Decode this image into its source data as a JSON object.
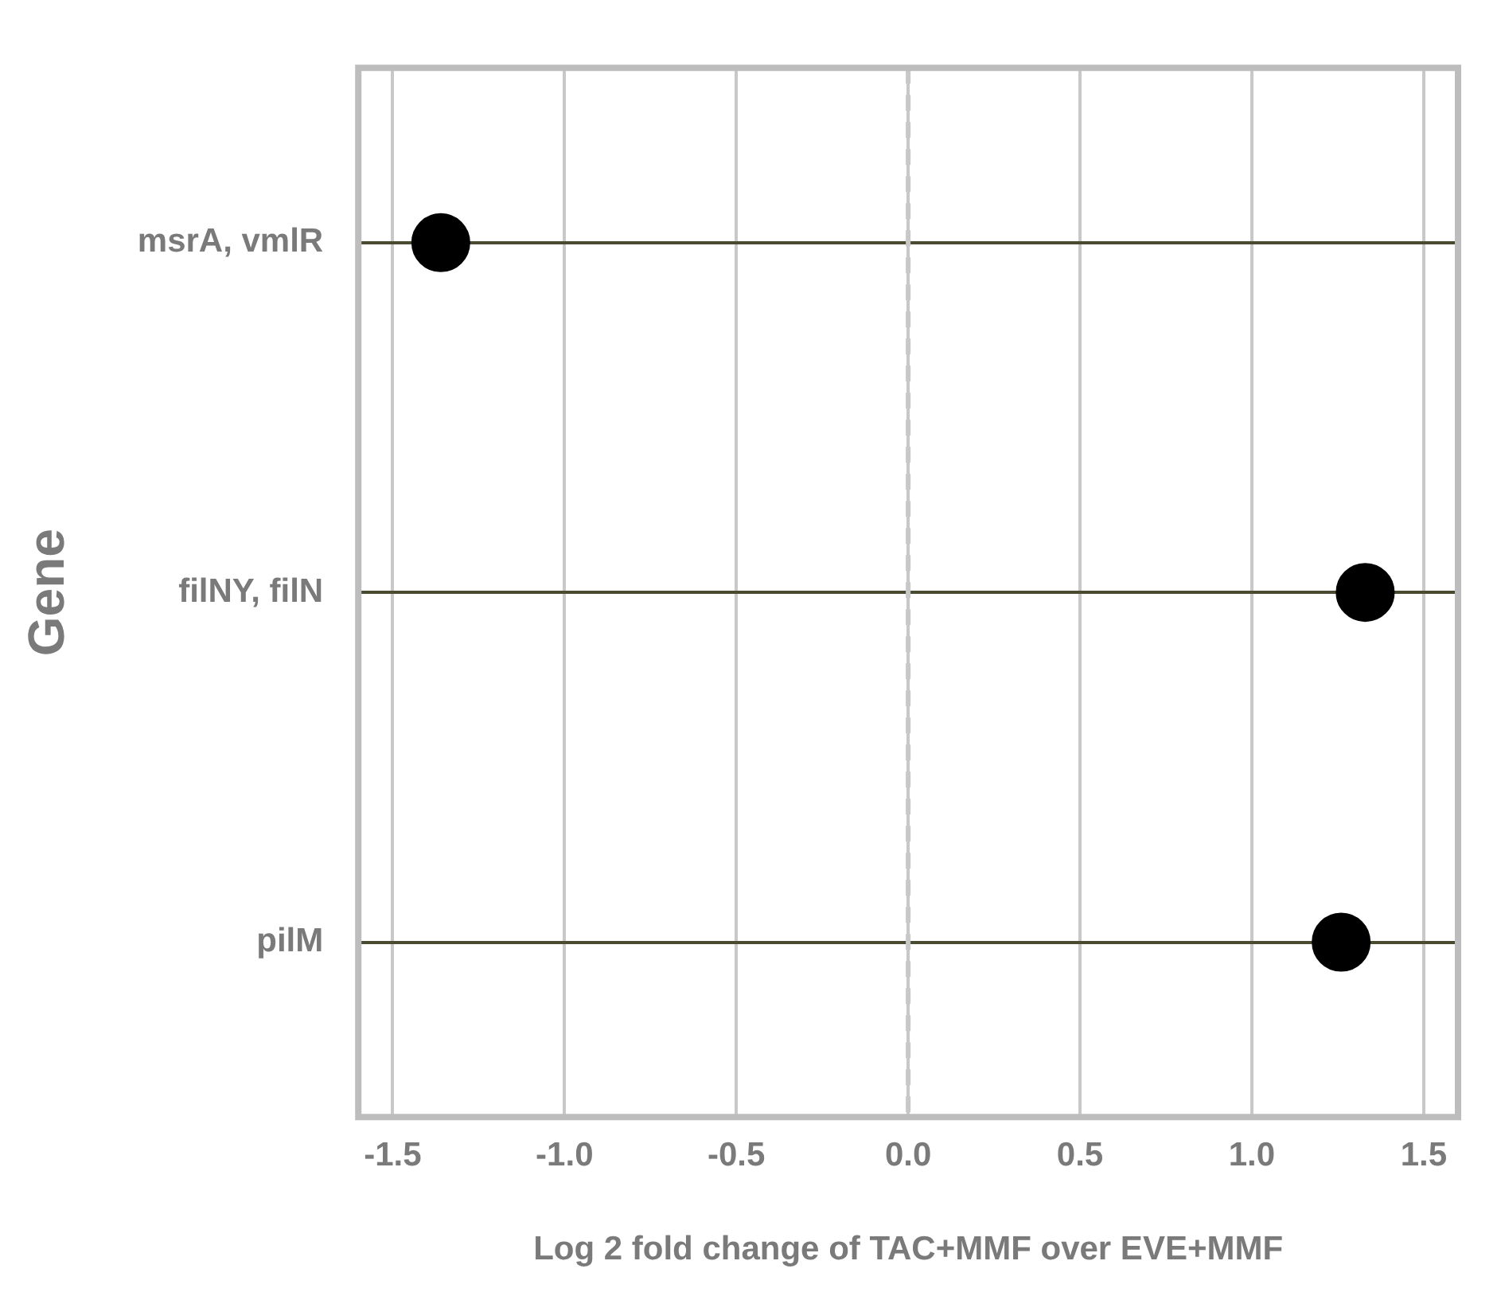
{
  "chart_data": {
    "type": "scatter",
    "orientation": "horizontal",
    "categories": [
      "msrA, vmlR",
      "filNY, filN",
      "pilM"
    ],
    "values": [
      -1.36,
      1.33,
      1.26
    ],
    "color": "#000000",
    "marker": "circle",
    "xlabel": "Log 2 fold change of TAC+MMF over EVE+MMF",
    "ylabel": "Gene",
    "xlim": [
      -1.6,
      1.6
    ],
    "xticks": [
      -1.5,
      {
        "value": -1,
        "label": "-1.0"
      },
      {
        "value": -0.5,
        "label": "-0.5"
      },
      {
        "value": 0,
        "label": "0.0"
      },
      {
        "value": 0.5,
        "label": "0.5"
      },
      {
        "value": 1,
        "label": "1.0"
      },
      1.5
    ],
    "grid": true,
    "ref_lines": [
      {
        "axis": "x",
        "value": 0,
        "color": "#c8c8c8",
        "line_style": "dashed"
      }
    ]
  }
}
